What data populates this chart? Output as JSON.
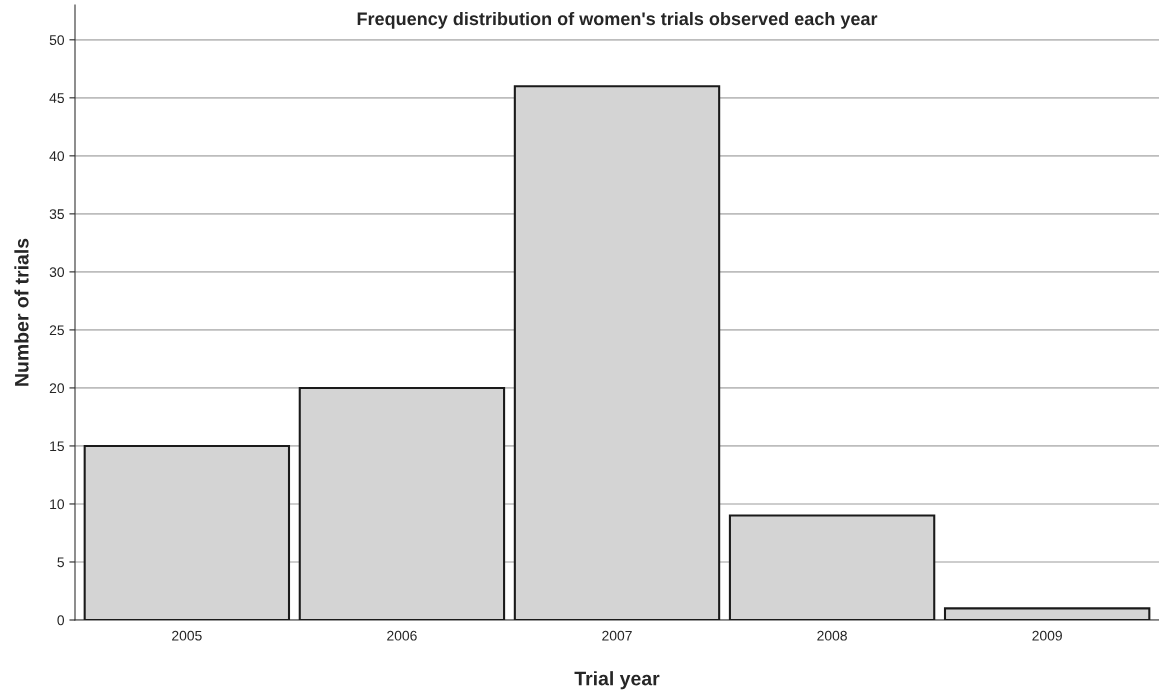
{
  "chart_data": {
    "type": "bar",
    "title": "Frequency distribution of women's trials observed each year",
    "xlabel": "Trial year",
    "ylabel": "Number of trials",
    "categories": [
      "2005",
      "2006",
      "2007",
      "2008",
      "2009"
    ],
    "values": [
      15,
      20,
      46,
      9,
      1
    ],
    "color": "#d4d4d4",
    "ylim": [
      0,
      53
    ],
    "yticks": [
      0,
      5,
      10,
      15,
      20,
      25,
      30,
      35,
      40,
      45,
      50
    ],
    "grid": "y",
    "legend": false
  }
}
